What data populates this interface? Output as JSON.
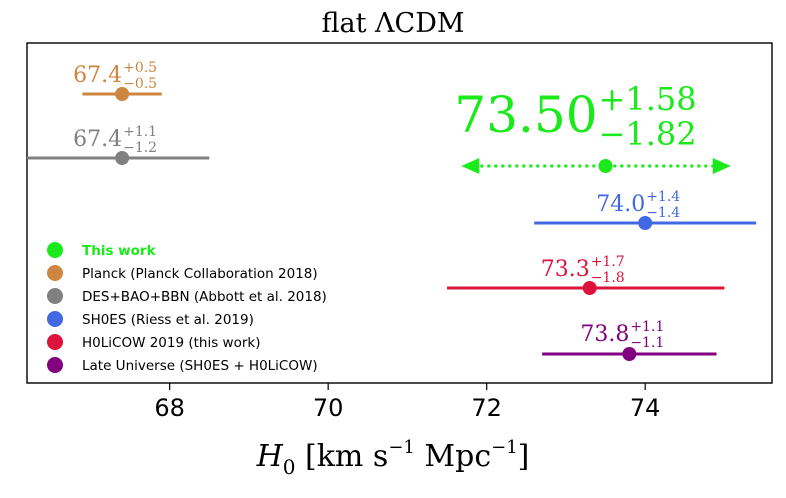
{
  "chart_data": {
    "type": "scatter",
    "title": "flat ΛCDM",
    "xlabel": "H₀ [km s⁻¹ Mpc⁻¹]",
    "xlabel_parts": {
      "symbol": "H",
      "sub": "0",
      "unit": "[km s",
      "exp1": "−1",
      "mid": " Mpc",
      "exp2": "−1",
      "close": "]"
    },
    "xlim": [
      66.2,
      75.6
    ],
    "xticks": [
      68,
      70,
      72,
      74
    ],
    "grid": false,
    "legend_placement": "lower-left",
    "series": [
      {
        "name": "This work",
        "color": "#1aea1a",
        "value": 73.5,
        "plus": 1.58,
        "minus": 1.82,
        "label_value": "73.50",
        "label_plus": "+1.58",
        "label_minus": "−1.82",
        "arrows": true,
        "bold_legend": true
      },
      {
        "name": "Planck (Planck Collaboration 2018)",
        "color": "#cd853f",
        "value": 67.4,
        "plus": 0.5,
        "minus": 0.5,
        "label_value": "67.4",
        "label_plus": "+0.5",
        "label_minus": "−0.5"
      },
      {
        "name": "DES+BAO+BBN (Abbott et al. 2018)",
        "color": "#808080",
        "value": 67.4,
        "plus": 1.1,
        "minus": 1.2,
        "label_value": "67.4",
        "label_plus": "+1.1",
        "label_minus": "−1.2"
      },
      {
        "name": "SH0ES (Riess et al. 2019)",
        "color": "#4169e1",
        "value": 74.0,
        "plus": 1.4,
        "minus": 1.4,
        "label_value": "74.0",
        "label_plus": "+1.4",
        "label_minus": "−1.4"
      },
      {
        "name": "H0LiCOW 2019 (this work)",
        "color": "#dc143c",
        "value": 73.3,
        "plus": 1.7,
        "minus": 1.8,
        "label_value": "73.3",
        "label_plus": "+1.7",
        "label_minus": "−1.8"
      },
      {
        "name": "Late Universe (SH0ES + H0LiCOW)",
        "color": "#800080",
        "value": 73.8,
        "plus": 1.1,
        "minus": 1.1,
        "label_value": "73.8",
        "label_plus": "+1.1",
        "label_minus": "−1.1"
      }
    ]
  }
}
